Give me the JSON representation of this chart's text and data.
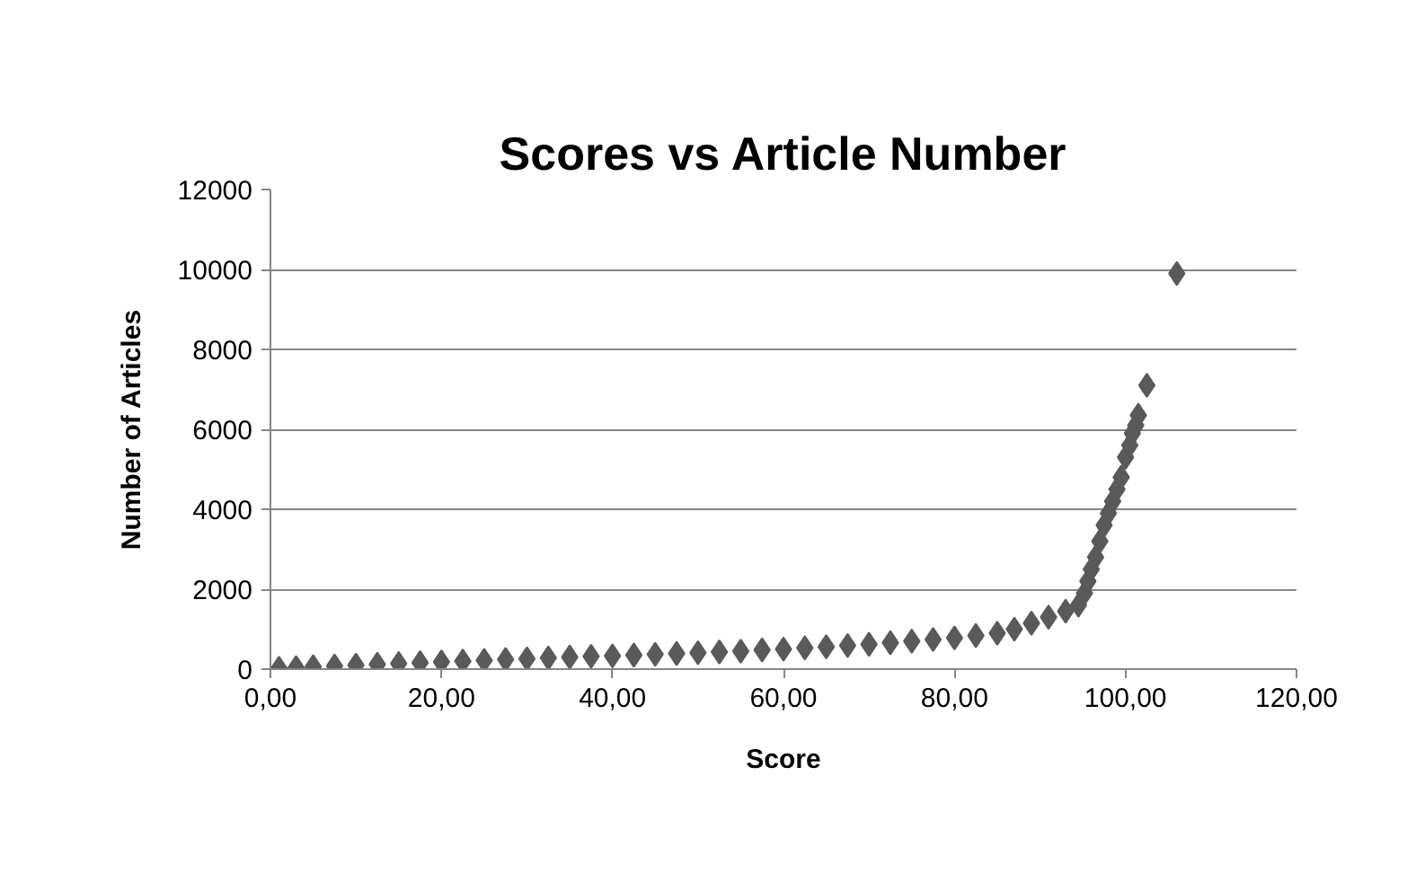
{
  "chart_data": {
    "type": "scatter",
    "title": "Scores vs Article Number",
    "xlabel": "Score",
    "ylabel": "Number of Articles",
    "x": [
      1,
      3,
      5,
      7.5,
      10,
      12.5,
      15,
      17.5,
      20,
      22.5,
      25,
      27.5,
      30,
      32.5,
      35,
      37.5,
      40,
      42.5,
      45,
      47.5,
      50,
      52.5,
      55,
      57.5,
      60,
      62.5,
      65,
      67.5,
      70,
      72.5,
      75,
      77.5,
      80,
      82.5,
      85,
      87,
      89,
      91,
      93,
      94.5,
      95.2,
      95.6,
      96,
      96.5,
      97,
      97.5,
      98,
      98.5,
      99,
      99.5,
      100,
      100.5,
      100.8,
      101.2,
      101.5,
      102.5,
      106
    ],
    "series": [
      {
        "color": "#5a5a5a",
        "values": [
          20,
          40,
          60,
          80,
          100,
          120,
          140,
          160,
          180,
          200,
          220,
          240,
          260,
          280,
          300,
          320,
          330,
          350,
          370,
          390,
          410,
          430,
          450,
          480,
          500,
          530,
          560,
          590,
          620,
          660,
          700,
          740,
          780,
          840,
          900,
          1000,
          1150,
          1300,
          1450,
          1600,
          1900,
          2200,
          2500,
          2800,
          3200,
          3600,
          3900,
          4200,
          4500,
          4800,
          5300,
          5600,
          5900,
          6100,
          6350,
          7100,
          9900
        ]
      }
    ],
    "xlim": [
      0,
      120
    ],
    "ylim": [
      0,
      12000
    ],
    "xticks": [
      {
        "value": 0,
        "label": "0,00"
      },
      {
        "value": 20,
        "label": "20,00"
      },
      {
        "value": 40,
        "label": "40,00"
      },
      {
        "value": 60,
        "label": "60,00"
      },
      {
        "value": 80,
        "label": "80,00"
      },
      {
        "value": 100,
        "label": "100,00"
      },
      {
        "value": 120,
        "label": "120,00"
      }
    ],
    "yticks": [
      0,
      2000,
      4000,
      6000,
      8000,
      10000,
      12000
    ],
    "grid": "y",
    "marker": "diamond"
  }
}
